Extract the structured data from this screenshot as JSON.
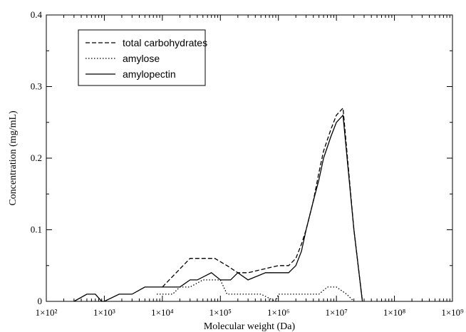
{
  "chart_data": {
    "type": "line",
    "title": "",
    "xlabel": "Molecular weight (Da)",
    "ylabel": "Concentration (mg/mL)",
    "x_scale": "log",
    "xlim": [
      100,
      1000000000
    ],
    "ylim": [
      0,
      0.4
    ],
    "grid": false,
    "legend_position": "top-left",
    "x_ticks": [
      "1×10²",
      "1×10³",
      "1×10⁴",
      "1×10⁵",
      "1×10⁶",
      "1×10⁷",
      "1×10⁸",
      "1×10⁹"
    ],
    "y_ticks": [
      "0",
      "0.1",
      "0.2",
      "0.3",
      "0.4"
    ],
    "series": [
      {
        "name": "total carbohydrates",
        "style": "dashed",
        "color": "#000000",
        "x": [
          10000,
          30000,
          80000,
          130000,
          200000,
          300000,
          1000000,
          1500000,
          2000000,
          2500000,
          3000000,
          4000000,
          5000000,
          6000000,
          8000000,
          10000000,
          13000000,
          20000000,
          28000000
        ],
        "y": [
          0.02,
          0.06,
          0.06,
          0.05,
          0.04,
          0.04,
          0.05,
          0.05,
          0.06,
          0.08,
          0.1,
          0.14,
          0.18,
          0.21,
          0.24,
          0.26,
          0.27,
          0.1,
          0
        ]
      },
      {
        "name": "amylose",
        "style": "dotted",
        "color": "#000000",
        "x": [
          8000,
          12000,
          15000,
          20000,
          30000,
          50000,
          100000,
          130000,
          300000,
          500000,
          900000,
          1000000,
          1300000,
          2000000,
          5000000,
          7000000,
          10000000,
          15000000,
          20000000
        ],
        "y": [
          0.01,
          0.01,
          0.01,
          0.02,
          0.02,
          0.03,
          0.03,
          0.01,
          0.01,
          0.01,
          0,
          0.01,
          0.01,
          0.01,
          0.01,
          0.02,
          0.02,
          0.01,
          0
        ]
      },
      {
        "name": "amylopectin",
        "style": "solid",
        "color": "#000000",
        "x": [
          300,
          500,
          700,
          900,
          1000,
          1800,
          3000,
          5000,
          10000,
          20000,
          30000,
          40000,
          70000,
          100000,
          150000,
          200000,
          300000,
          600000,
          1000000,
          1500000,
          2000000,
          2500000,
          3000000,
          4000000,
          5000000,
          6000000,
          8000000,
          10000000,
          13000000,
          20000000,
          28000000
        ],
        "y": [
          0,
          0.01,
          0.01,
          0,
          0,
          0.01,
          0.01,
          0.02,
          0.02,
          0.02,
          0.03,
          0.03,
          0.04,
          0.03,
          0.03,
          0.04,
          0.03,
          0.04,
          0.04,
          0.04,
          0.05,
          0.07,
          0.1,
          0.14,
          0.17,
          0.2,
          0.23,
          0.25,
          0.26,
          0.1,
          0
        ]
      }
    ]
  }
}
